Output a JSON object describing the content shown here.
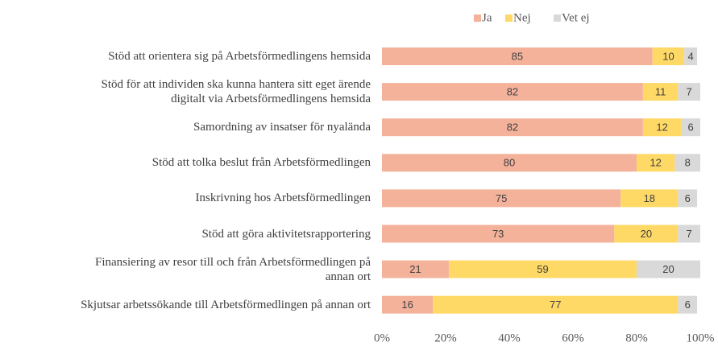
{
  "chart_data": {
    "type": "stacked_barh",
    "categories": [
      "Stöd att orientera sig på Arbetsförmedlingens hemsida",
      "Stöd för att individen ska kunna hantera sitt eget ärende\ndigitalt via Arbetsförmedlingens hemsida",
      "Samordning av insatser för nyalända",
      "Stöd att tolka beslut från Arbetsförmedlingen",
      "Inskrivning hos Arbetsförmedlingen",
      "Stöd att göra aktivitetsrapportering",
      "Finansiering av resor till och från Arbetsförmedlingen på\nannan ort",
      "Skjutsar arbetssökande till Arbetsförmedlingen på annan ort"
    ],
    "series": [
      {
        "name": "Ja",
        "color": "#f4b29b",
        "values": [
          85,
          82,
          82,
          80,
          75,
          73,
          21,
          16
        ]
      },
      {
        "name": "Nej",
        "color": "#ffd966",
        "values": [
          10,
          11,
          12,
          12,
          18,
          20,
          59,
          77
        ]
      },
      {
        "name": "Vet ej",
        "color": "#d9d9d9",
        "values": [
          4,
          7,
          6,
          8,
          6,
          7,
          20,
          6
        ]
      }
    ],
    "xlim": [
      0,
      100
    ],
    "xticks": [
      {
        "value": 0,
        "label": "0%"
      },
      {
        "value": 20,
        "label": "20%"
      },
      {
        "value": 40,
        "label": "40%"
      },
      {
        "value": 60,
        "label": "60%"
      },
      {
        "value": 80,
        "label": "80%"
      },
      {
        "value": 100,
        "label": "100%"
      }
    ],
    "legend": "top"
  }
}
